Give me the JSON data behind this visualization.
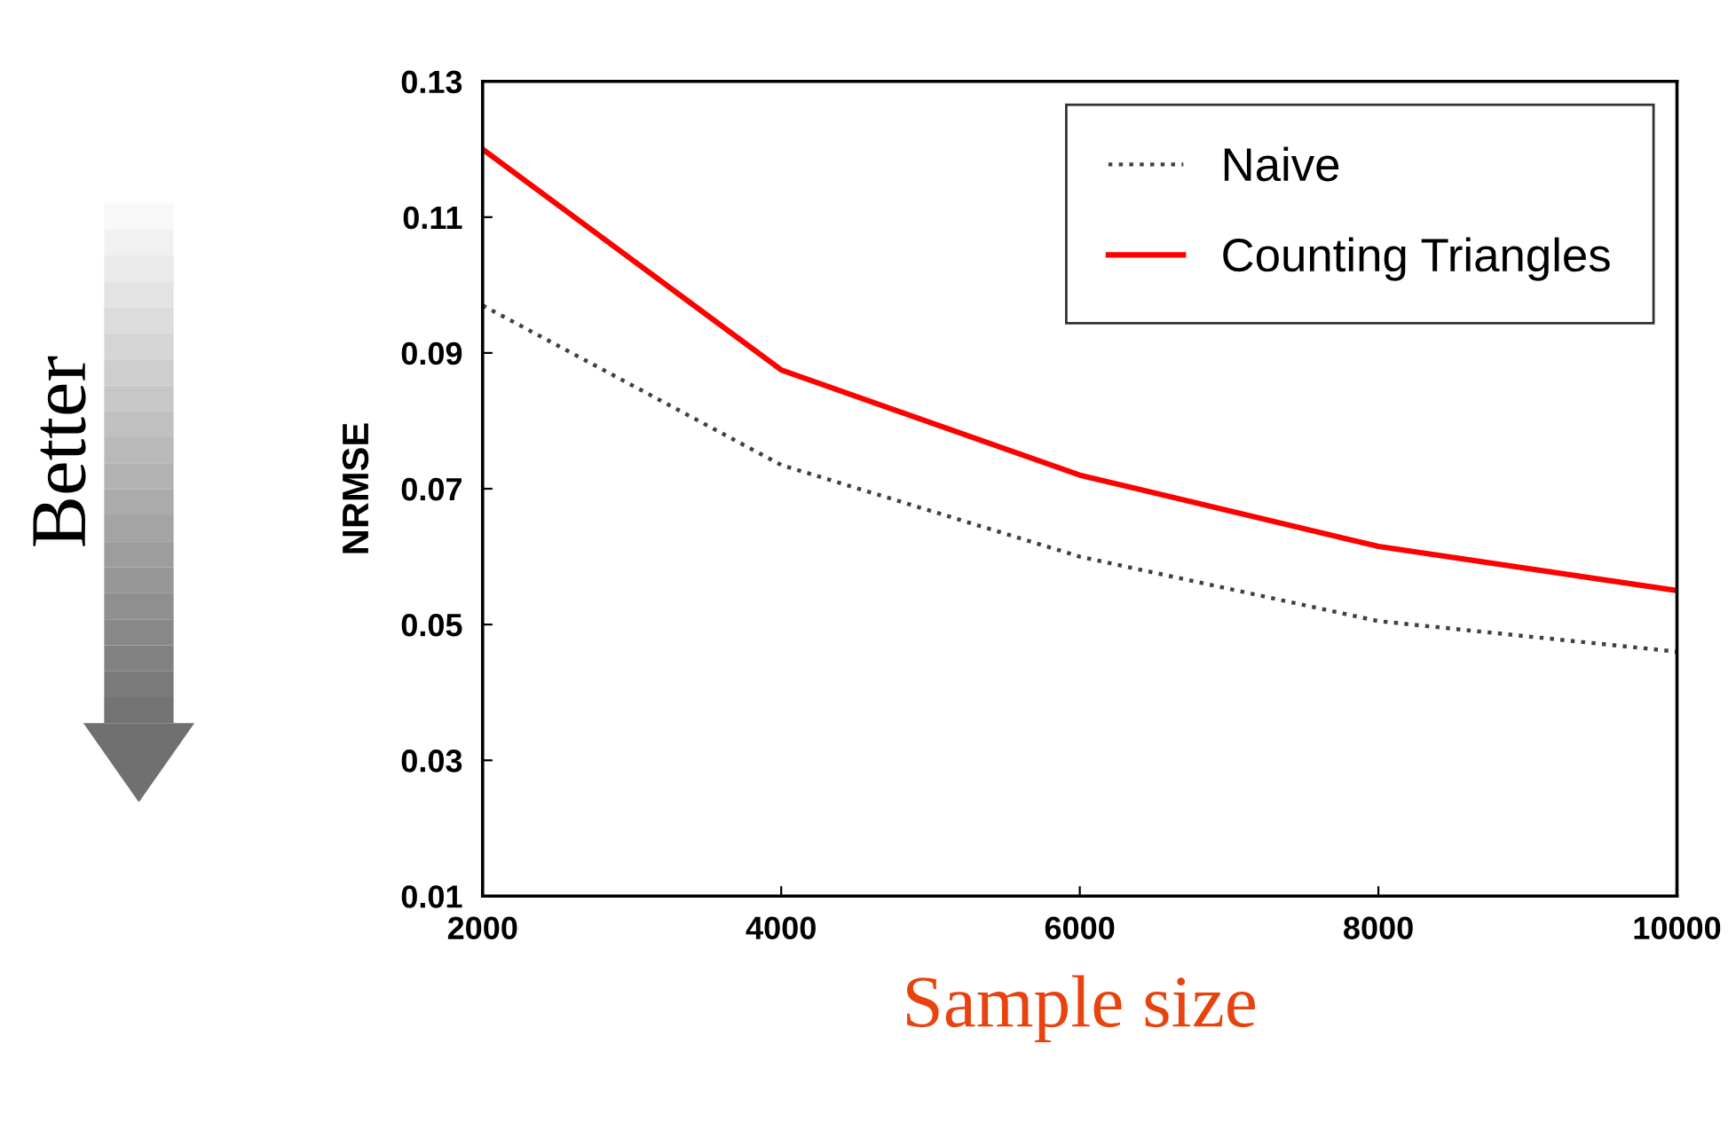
{
  "chart_data": {
    "type": "line",
    "xlabel": "Sample size",
    "ylabel": "NRMSE",
    "x": [
      2000,
      4000,
      6000,
      8000,
      10000
    ],
    "series": [
      {
        "name": "Naive",
        "color": "#404040",
        "line_style": "dotted",
        "values": [
          0.097,
          0.0735,
          0.06,
          0.0505,
          0.046
        ]
      },
      {
        "name": "Counting Triangles",
        "color": "#ff0000",
        "line_style": "solid",
        "values": [
          0.12,
          0.0875,
          0.072,
          0.0615,
          0.055
        ]
      }
    ],
    "xlim": [
      2000,
      10000
    ],
    "xticks": [
      2000,
      4000,
      6000,
      8000,
      10000
    ],
    "ylim": [
      0.01,
      0.13
    ],
    "yticks": [
      {
        "value": 0.01,
        "label": "0.01"
      },
      {
        "value": 0.03,
        "label": "0.03"
      },
      {
        "value": 0.05,
        "label": "0.05"
      },
      {
        "value": 0.07,
        "label": "0.07"
      },
      {
        "value": 0.09,
        "label": "0.09"
      },
      {
        "value": 0.11,
        "label": "0.11"
      },
      {
        "value": 0.13,
        "label": "0.13"
      }
    ],
    "grid": false,
    "legend": "top right",
    "marker": "none",
    "annotations": [
      "Better"
    ]
  }
}
